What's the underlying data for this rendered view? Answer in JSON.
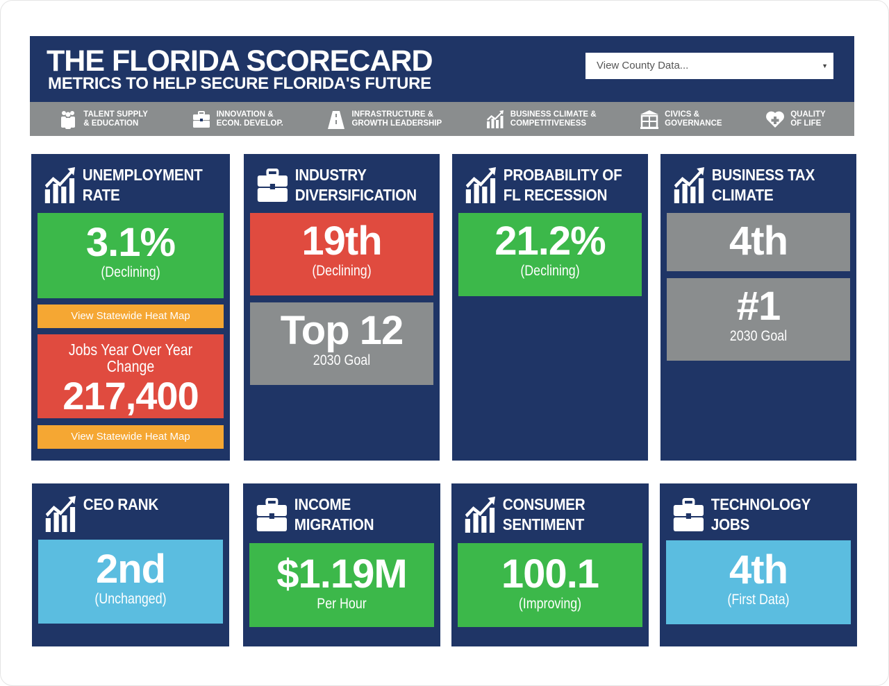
{
  "header": {
    "title": "THE FLORIDA SCORECARD",
    "subtitle": "METRICS TO HELP SECURE FLORIDA'S FUTURE",
    "county_select": "View County Data..."
  },
  "nav": [
    {
      "icon": "people-icon",
      "line1": "TALENT SUPPLY",
      "line2": "& EDUCATION"
    },
    {
      "icon": "briefcase-icon",
      "line1": "INNOVATION &",
      "line2": "ECON. DEVELOP."
    },
    {
      "icon": "road-icon",
      "line1": "INFRASTRUCTURE &",
      "line2": "GROWTH LEADERSHIP"
    },
    {
      "icon": "chart-up-icon",
      "line1": "BUSINESS CLIMATE &",
      "line2": "COMPETITIVENESS"
    },
    {
      "icon": "building-icon",
      "line1": "CIVICS &",
      "line2": "GOVERNANCE"
    },
    {
      "icon": "heart-plus-icon",
      "line1": "QUALITY",
      "line2": "OF LIFE"
    }
  ],
  "cards": [
    {
      "l1": "UNEMPLOYMENT",
      "l2": "RATE",
      "value": "3.1%",
      "status": "(Declining)",
      "link": "View Statewide Heat Map",
      "jobs_label": "Jobs Year Over Year Change",
      "jobs_value": "217,400",
      "link2": "View Statewide Heat Map"
    },
    {
      "l1": "INDUSTRY",
      "l2": "DIVERSIFICATION",
      "value": "19th",
      "status": "(Declining)",
      "goal": "Top 12",
      "goal_label": "2030 Goal"
    },
    {
      "l1": "PROBABILITY OF",
      "l2": "FL RECESSION",
      "value": "21.2%",
      "status": "(Declining)"
    },
    {
      "l1": "BUSINESS TAX",
      "l2": "CLIMATE",
      "value": "4th",
      "goal": "#1",
      "goal_label": "2030 Goal"
    },
    {
      "l1": "CEO RANK",
      "l2": "",
      "value": "2nd",
      "status": "(Unchanged)"
    },
    {
      "l1": "INCOME",
      "l2": "MIGRATION",
      "value": "$1.19M",
      "status": "Per Hour"
    },
    {
      "l1": "CONSUMER",
      "l2": "SENTIMENT",
      "value": "100.1",
      "status": "(Improving)"
    },
    {
      "l1": "TECHNOLOGY JOBS",
      "l2": "",
      "value": "4th",
      "status": "(First Data)"
    }
  ],
  "colors": {
    "navy": "#1f3566",
    "green": "#3cb84a",
    "red": "#e04b3f",
    "gray": "#8a8d8e",
    "orange": "#f5a733",
    "blue": "#5bbde0"
  }
}
